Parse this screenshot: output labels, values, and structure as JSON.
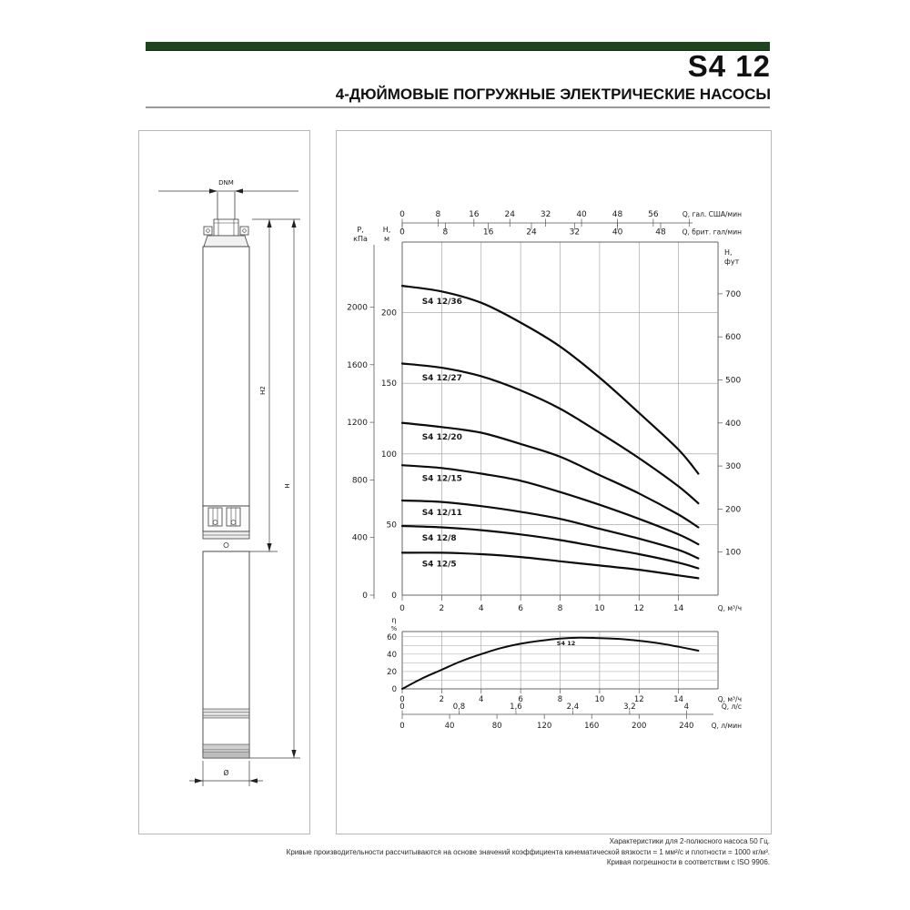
{
  "page": {
    "title": "S4 12",
    "subtitle": "4-ДЮЙМОВЫЕ ПОГРУЖНЫЕ ЭЛЕКТРИЧЕСКИЕ НАСОСЫ",
    "accent_color": "#1e441e",
    "footer_lines": [
      "Характеристики для 2-полюсного насоса 50 Гц.",
      "Кривые производительности рассчитываются на основе значений коэффициента кинематической вязкости = 1 мм²/с и плотности = 1000 кг/м³.",
      "Кривая погрешности в соответствии с ISO 9906."
    ]
  },
  "drawing": {
    "labels": {
      "top_port": "DNM",
      "height_pump": "H2",
      "height_total": "H",
      "diameter": "Ø"
    }
  },
  "chart_data": [
    {
      "type": "line",
      "title": "Кривые напора S4 12",
      "grid": "on",
      "xlim": [
        0,
        16
      ],
      "ylim": [
        0,
        250
      ],
      "y_axis_m": {
        "label": "H, м",
        "ticks": [
          0,
          50,
          100,
          150,
          200
        ]
      },
      "y_axis_kpa": {
        "label": "P, кПа",
        "ticks": [
          0,
          400,
          800,
          1200,
          1600,
          2000
        ]
      },
      "y_axis_ft": {
        "label": "H, фут",
        "ticks": [
          100,
          200,
          300,
          400,
          500,
          600,
          700
        ]
      },
      "x_axis_m3h": {
        "label": "Q, м³/ч",
        "ticks": [
          0,
          2,
          4,
          6,
          8,
          10,
          12,
          14
        ]
      },
      "x_axis_usgpm": {
        "label": "Q, гал. США/мин",
        "ticks": [
          0,
          8,
          16,
          24,
          32,
          40,
          48,
          56
        ]
      },
      "x_axis_impgpm": {
        "label": "Q, брит. гал/мин",
        "ticks": [
          0,
          8,
          16,
          24,
          32,
          40,
          48
        ]
      },
      "x_axis_ls": {
        "label": "Q, л/с",
        "ticks": [
          "0",
          "0,8",
          "1,6",
          "2,4",
          "3,2",
          "4"
        ]
      },
      "x_axis_lmin": {
        "label": "Q, л/мин",
        "ticks": [
          0,
          40,
          80,
          120,
          160,
          200,
          240
        ]
      },
      "x": [
        0,
        2,
        4,
        6,
        8,
        10,
        12,
        14,
        15
      ],
      "series": [
        {
          "name": "S4 12/36",
          "values": [
            219,
            215,
            207,
            193,
            176,
            154,
            129,
            103,
            86
          ]
        },
        {
          "name": "S4 12/27",
          "values": [
            164,
            161,
            155,
            145,
            132,
            115,
            97,
            77,
            65
          ]
        },
        {
          "name": "S4 12/20",
          "values": [
            122,
            119,
            115,
            107,
            98,
            85,
            72,
            57,
            48
          ]
        },
        {
          "name": "S4 12/15",
          "values": [
            92,
            90,
            86,
            81,
            73,
            64,
            54,
            43,
            36
          ]
        },
        {
          "name": "S4 12/11",
          "values": [
            67,
            66,
            63,
            59,
            54,
            47,
            40,
            32,
            26
          ]
        },
        {
          "name": "S4 12/8",
          "values": [
            49,
            48,
            46,
            43,
            39,
            34,
            29,
            23,
            19
          ]
        },
        {
          "name": "S4 12/5",
          "values": [
            30,
            30,
            29,
            27,
            24,
            21,
            18,
            14,
            12
          ]
        }
      ]
    },
    {
      "type": "line",
      "title": "КПД",
      "grid": "on",
      "xlim": [
        0,
        16
      ],
      "ylim": [
        0,
        66
      ],
      "y_axis": {
        "label": "η %",
        "ticks": [
          0,
          20,
          40,
          60
        ]
      },
      "x": [
        0,
        1,
        2,
        3,
        4,
        5,
        6,
        7,
        8,
        9,
        10,
        11,
        12,
        13,
        14,
        15
      ],
      "series": [
        {
          "name": "S4 12",
          "values": [
            0,
            12,
            22,
            32,
            40,
            47,
            52,
            55.5,
            58,
            59,
            58.5,
            57.5,
            55.5,
            52.5,
            48.5,
            44
          ]
        }
      ]
    }
  ]
}
